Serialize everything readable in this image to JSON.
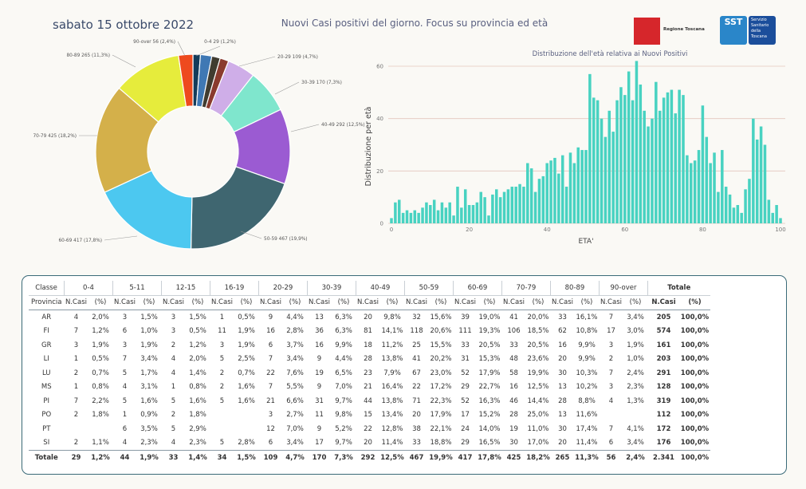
{
  "header": {
    "date": "sabato 15 ottobre 2022",
    "title": "Nuovi Casi positivi del giorno. Focus su provincia ed età",
    "logo_rt": "Regione Toscana",
    "logo_sst": "SST",
    "logo_sst_text": "Servizio Sanitario della Toscana"
  },
  "chart_data": [
    {
      "type": "pie",
      "donut": true,
      "slices": [
        {
          "label": "0-4 29 (1,2%)",
          "value": 29,
          "color": "#143c5a"
        },
        {
          "label": "5-11 44 (1,9%)",
          "value": 44,
          "color": "#3f78b4"
        },
        {
          "label": "12-15 33 (1,4%)",
          "value": 33,
          "color": "#403c30"
        },
        {
          "label": "16-19 34 (1,5%)",
          "value": 34,
          "color": "#8a3b2e"
        },
        {
          "label": "20-29 109 (4,7%)",
          "value": 109,
          "color": "#cfaee8"
        },
        {
          "label": "30-39 170 (7,3%)",
          "value": 170,
          "color": "#7fe6cd"
        },
        {
          "label": "40-49 292 (12,5%)",
          "value": 292,
          "color": "#9b5bd2"
        },
        {
          "label": "50-59 467 (19,9%)",
          "value": 467,
          "color": "#3f6670"
        },
        {
          "label": "60-69 417 (17,8%)",
          "value": 417,
          "color": "#4cc8f0"
        },
        {
          "label": "70-79 425 (18,2%)",
          "value": 425,
          "color": "#d4b04a"
        },
        {
          "label": "80-89 265 (11,3%)",
          "value": 265,
          "color": "#e6ec3c"
        },
        {
          "label": "90-over 56 (2,4%)",
          "value": 56,
          "color": "#ee4a1e"
        }
      ]
    },
    {
      "type": "bar",
      "title": "Distribuzione dell'età relativa ai Nuovi Positivi",
      "xlabel": "ETA'",
      "ylabel": "Distribuzione per età",
      "xlim": [
        0,
        100
      ],
      "ylim": [
        0,
        60
      ],
      "xticks": [
        "0",
        "20",
        "40",
        "60",
        "80",
        "100"
      ],
      "yticks": [
        "0",
        "20",
        "40",
        "60"
      ],
      "grid": true,
      "color": "#48d2c1",
      "x": [
        0,
        1,
        2,
        3,
        4,
        5,
        6,
        7,
        8,
        9,
        10,
        11,
        12,
        13,
        14,
        15,
        16,
        17,
        18,
        19,
        20,
        21,
        22,
        23,
        24,
        25,
        26,
        27,
        28,
        29,
        30,
        31,
        32,
        33,
        34,
        35,
        36,
        37,
        38,
        39,
        40,
        41,
        42,
        43,
        44,
        45,
        46,
        47,
        48,
        49,
        50,
        51,
        52,
        53,
        54,
        55,
        56,
        57,
        58,
        59,
        60,
        61,
        62,
        63,
        64,
        65,
        66,
        67,
        68,
        69,
        70,
        71,
        72,
        73,
        74,
        75,
        76,
        77,
        78,
        79,
        80,
        81,
        82,
        83,
        84,
        85,
        86,
        87,
        88,
        89,
        90,
        91,
        92,
        93,
        94,
        95,
        96,
        97,
        98,
        99,
        100
      ],
      "values": [
        2,
        8,
        9,
        4,
        5,
        4,
        5,
        4,
        6,
        8,
        7,
        9,
        5,
        8,
        6,
        8,
        3,
        14,
        6,
        13,
        7,
        7,
        8,
        12,
        10,
        3,
        11,
        13,
        10,
        12,
        13,
        14,
        14,
        15,
        14,
        23,
        21,
        12,
        17,
        18,
        23,
        24,
        25,
        19,
        26,
        14,
        27,
        23,
        29,
        28,
        28,
        57,
        48,
        47,
        40,
        33,
        43,
        35,
        47,
        52,
        49,
        58,
        47,
        62,
        53,
        43,
        37,
        40,
        54,
        43,
        48,
        50,
        51,
        42,
        51,
        49,
        26,
        23,
        24,
        28,
        45,
        33,
        23,
        27,
        12,
        28,
        14,
        11,
        6,
        7,
        4,
        13,
        17,
        40,
        32,
        37,
        30,
        9,
        4,
        7,
        2
      ]
    }
  ],
  "table": {
    "group_header_label": "Classe",
    "row_header_label": "Provincia",
    "groups": [
      "0-4",
      "5-11",
      "12-15",
      "16-19",
      "20-29",
      "30-39",
      "40-49",
      "50-59",
      "60-69",
      "70-79",
      "80-89",
      "90-over"
    ],
    "total_group": "Totale",
    "col_ncasi": "N.Casi",
    "col_pct": "(%)",
    "rows": [
      {
        "prov": "AR",
        "cells": [
          "4",
          "2,0%",
          "3",
          "1,5%",
          "3",
          "1,5%",
          "1",
          "0,5%",
          "9",
          "4,4%",
          "13",
          "6,3%",
          "20",
          "9,8%",
          "32",
          "15,6%",
          "39",
          "19,0%",
          "41",
          "20,0%",
          "33",
          "16,1%",
          "7",
          "3,4%"
        ],
        "tot": "205",
        "totp": "100,0%"
      },
      {
        "prov": "FI",
        "cells": [
          "7",
          "1,2%",
          "6",
          "1,0%",
          "3",
          "0,5%",
          "11",
          "1,9%",
          "16",
          "2,8%",
          "36",
          "6,3%",
          "81",
          "14,1%",
          "118",
          "20,6%",
          "111",
          "19,3%",
          "106",
          "18,5%",
          "62",
          "10,8%",
          "17",
          "3,0%"
        ],
        "tot": "574",
        "totp": "100,0%"
      },
      {
        "prov": "GR",
        "cells": [
          "3",
          "1,9%",
          "3",
          "1,9%",
          "2",
          "1,2%",
          "3",
          "1,9%",
          "6",
          "3,7%",
          "16",
          "9,9%",
          "18",
          "11,2%",
          "25",
          "15,5%",
          "33",
          "20,5%",
          "33",
          "20,5%",
          "16",
          "9,9%",
          "3",
          "1,9%"
        ],
        "tot": "161",
        "totp": "100,0%"
      },
      {
        "prov": "LI",
        "cells": [
          "1",
          "0,5%",
          "7",
          "3,4%",
          "4",
          "2,0%",
          "5",
          "2,5%",
          "7",
          "3,4%",
          "9",
          "4,4%",
          "28",
          "13,8%",
          "41",
          "20,2%",
          "31",
          "15,3%",
          "48",
          "23,6%",
          "20",
          "9,9%",
          "2",
          "1,0%"
        ],
        "tot": "203",
        "totp": "100,0%"
      },
      {
        "prov": "LU",
        "cells": [
          "2",
          "0,7%",
          "5",
          "1,7%",
          "4",
          "1,4%",
          "2",
          "0,7%",
          "22",
          "7,6%",
          "19",
          "6,5%",
          "23",
          "7,9%",
          "67",
          "23,0%",
          "52",
          "17,9%",
          "58",
          "19,9%",
          "30",
          "10,3%",
          "7",
          "2,4%"
        ],
        "tot": "291",
        "totp": "100,0%"
      },
      {
        "prov": "MS",
        "cells": [
          "1",
          "0,8%",
          "4",
          "3,1%",
          "1",
          "0,8%",
          "2",
          "1,6%",
          "7",
          "5,5%",
          "9",
          "7,0%",
          "21",
          "16,4%",
          "22",
          "17,2%",
          "29",
          "22,7%",
          "16",
          "12,5%",
          "13",
          "10,2%",
          "3",
          "2,3%"
        ],
        "tot": "128",
        "totp": "100,0%"
      },
      {
        "prov": "PI",
        "cells": [
          "7",
          "2,2%",
          "5",
          "1,6%",
          "5",
          "1,6%",
          "5",
          "1,6%",
          "21",
          "6,6%",
          "31",
          "9,7%",
          "44",
          "13,8%",
          "71",
          "22,3%",
          "52",
          "16,3%",
          "46",
          "14,4%",
          "28",
          "8,8%",
          "4",
          "1,3%"
        ],
        "tot": "319",
        "totp": "100,0%"
      },
      {
        "prov": "PO",
        "cells": [
          "2",
          "1,8%",
          "1",
          "0,9%",
          "2",
          "1,8%",
          "",
          "",
          "3",
          "2,7%",
          "11",
          "9,8%",
          "15",
          "13,4%",
          "20",
          "17,9%",
          "17",
          "15,2%",
          "28",
          "25,0%",
          "13",
          "11,6%",
          "",
          ""
        ],
        "tot": "112",
        "totp": "100,0%"
      },
      {
        "prov": "PT",
        "cells": [
          "",
          "",
          "6",
          "3,5%",
          "5",
          "2,9%",
          "",
          "",
          "12",
          "7,0%",
          "9",
          "5,2%",
          "22",
          "12,8%",
          "38",
          "22,1%",
          "24",
          "14,0%",
          "19",
          "11,0%",
          "30",
          "17,4%",
          "7",
          "4,1%"
        ],
        "tot": "172",
        "totp": "100,0%"
      },
      {
        "prov": "SI",
        "cells": [
          "2",
          "1,1%",
          "4",
          "2,3%",
          "4",
          "2,3%",
          "5",
          "2,8%",
          "6",
          "3,4%",
          "17",
          "9,7%",
          "20",
          "11,4%",
          "33",
          "18,8%",
          "29",
          "16,5%",
          "30",
          "17,0%",
          "20",
          "11,4%",
          "6",
          "3,4%"
        ],
        "tot": "176",
        "totp": "100,0%"
      }
    ],
    "total_row": {
      "prov": "Totale",
      "cells": [
        "29",
        "1,2%",
        "44",
        "1,9%",
        "33",
        "1,4%",
        "34",
        "1,5%",
        "109",
        "4,7%",
        "170",
        "7,3%",
        "292",
        "12,5%",
        "467",
        "19,9%",
        "417",
        "17,8%",
        "425",
        "18,2%",
        "265",
        "11,3%",
        "56",
        "2,4%"
      ],
      "tot": "2.341",
      "totp": "100,0%"
    }
  }
}
